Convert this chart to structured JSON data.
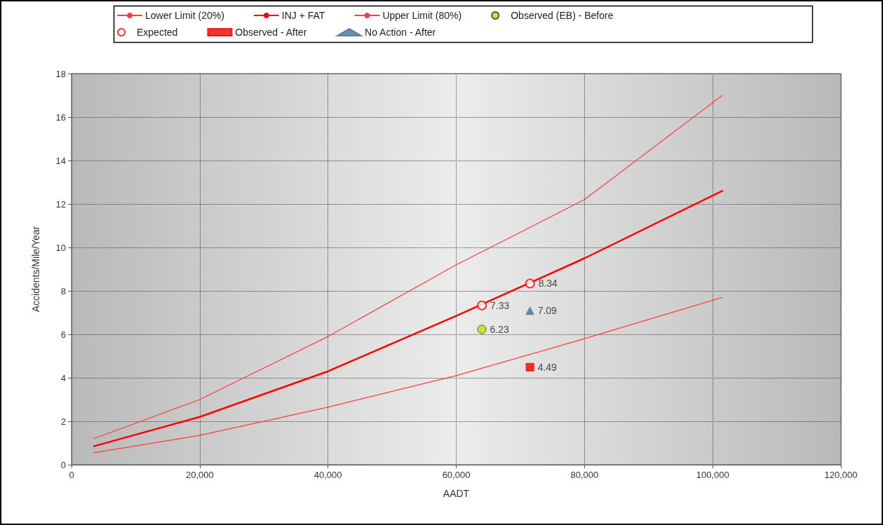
{
  "chart_data": {
    "type": "line",
    "xlabel": "AADT",
    "ylabel": "Accidents/Mile/Year",
    "xlim": [
      0,
      120000
    ],
    "xticks": [
      0,
      {
        "value": 20000,
        "label": "20,000"
      },
      {
        "value": 40000,
        "label": "40,000"
      },
      {
        "value": 60000,
        "label": "60,000"
      },
      {
        "value": 80000,
        "label": "80,000"
      },
      {
        "value": 100000,
        "label": "100,000"
      },
      {
        "value": 120000,
        "label": "120,000"
      }
    ],
    "ylim": [
      0,
      18
    ],
    "yticks": [
      0,
      2,
      4,
      6,
      8,
      10,
      12,
      14,
      16,
      18
    ],
    "grid": true,
    "legend": "top",
    "line_style": "solid",
    "series": [
      {
        "name": "Lower Limit (20%)",
        "color": "#ff3b3b",
        "x": [
          3500,
          20000,
          40000,
          60000,
          80000,
          101500
        ],
        "values": [
          0.55,
          1.35,
          2.65,
          4.1,
          5.8,
          7.7
        ],
        "marker": "none"
      },
      {
        "name": "INJ + FAT",
        "color": "#ff0000",
        "x": [
          3500,
          20000,
          40000,
          60000,
          80000,
          101500
        ],
        "values": [
          0.85,
          2.2,
          4.3,
          6.85,
          9.5,
          12.6
        ],
        "marker": "none"
      },
      {
        "name": "Upper Limit (80%)",
        "color": "#ff3b3b",
        "x": [
          3500,
          20000,
          40000,
          60000,
          80000,
          101500
        ],
        "values": [
          1.2,
          3.0,
          5.9,
          9.2,
          12.2,
          17.0
        ],
        "marker": "none"
      },
      {
        "name": "Observed (EB) - Before",
        "type": "scatter",
        "color": "#ccdd00",
        "x": [
          64000
        ],
        "values": [
          6.23
        ],
        "value_labels": [
          "6.23"
        ],
        "marker": "circle"
      },
      {
        "name": "Expected",
        "type": "scatter",
        "color": "#ff0000",
        "x": [
          64000,
          71500
        ],
        "values": [
          7.33,
          8.34
        ],
        "value_labels": [
          "7.33",
          "8.34"
        ],
        "marker": "circle"
      },
      {
        "name": "Observed - After",
        "type": "scatter",
        "color": "#ee0000",
        "x": [
          71500
        ],
        "values": [
          4.49
        ],
        "value_labels": [
          "4.49"
        ],
        "marker": "square"
      },
      {
        "name": "No Action - After",
        "type": "scatter",
        "color": "#4a6f9a",
        "x": [
          71500
        ],
        "values": [
          7.09
        ],
        "value_labels": [
          "7.09"
        ],
        "marker": "triangle"
      }
    ]
  }
}
